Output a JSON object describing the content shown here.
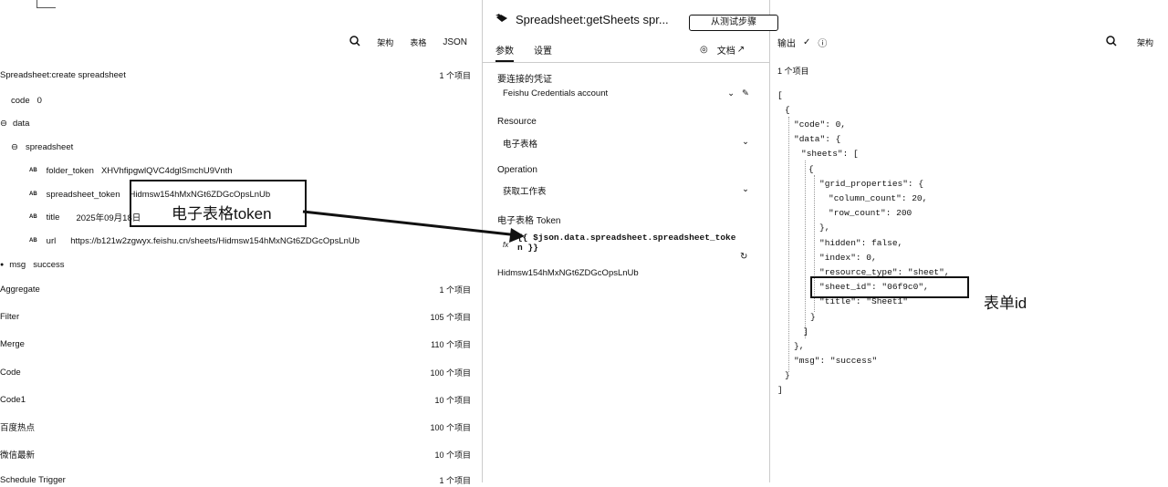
{
  "left": {
    "toolbar": {
      "schema": "架构",
      "table": "表格",
      "json": "JSON"
    },
    "node_title": "Spreadsheet:create spreadsheet",
    "node_count": "1 个项目",
    "fields": [
      {
        "key": "code",
        "value": "0"
      },
      {
        "key": "data",
        "value": ""
      },
      {
        "key": "spreadsheet",
        "value": ""
      },
      {
        "key": "folder_token",
        "value": "XHVhfipgwlQVC4dglSmchU9Vnth"
      },
      {
        "key": "spreadsheet_token",
        "value": "Hidmsw154hMxNGt6ZDGcOpsLnUb"
      },
      {
        "key": "title",
        "value": "2025年09月18日"
      },
      {
        "key": "url",
        "value": "https://b121w2zgwyx.feishu.cn/sheets/Hidmsw154hMxNGt6ZDGcOpsLnUb"
      },
      {
        "key": "msg",
        "value": "success"
      }
    ],
    "type_tag": "AB",
    "nodes": [
      {
        "name": "Aggregate",
        "count": "1 个项目"
      },
      {
        "name": "Filter",
        "count": "105 个项目"
      },
      {
        "name": "Merge",
        "count": "110 个项目"
      },
      {
        "name": "Code",
        "count": "100 个项目"
      },
      {
        "name": "Code1",
        "count": "10 个项目"
      },
      {
        "name": "百度热点",
        "count": "100 个项目"
      },
      {
        "name": "微信最新",
        "count": "10 个项目"
      },
      {
        "name": "Schedule Trigger",
        "count": "1 个项目"
      }
    ],
    "annotation": "电子表格token"
  },
  "mid": {
    "title": "Spreadsheet:getSheets spr...",
    "exec_label": "从测试步骤",
    "tabs": {
      "params": "参数",
      "settings": "设置",
      "docs": "文档"
    },
    "credential_label": "要连接的凭证",
    "credential_value": "Feishu Credentials account",
    "resource_label": "Resource",
    "resource_value": "电子表格",
    "operation_label": "Operation",
    "operation_value": "获取工作表",
    "token_label": "电子表格 Token",
    "token_expr_1": "{{ $json.data.spreadsheet.spreadsheet_toke",
    "token_expr_2": "n }}",
    "fx": "fx",
    "token_result": "Hidmsw154hMxNGt6ZDGcOpsLnUb"
  },
  "right": {
    "output_label": "输出",
    "schema": "架构",
    "count": "1 个项目",
    "json_lines": [
      "[",
      "{",
      "\"code\": 0,",
      "\"data\": {",
      "\"sheets\": [",
      "{",
      "\"grid_properties\": {",
      "\"column_count\": 20,",
      "\"row_count\": 200",
      "},",
      "\"hidden\": false,",
      "\"index\": 0,",
      "\"resource_type\": \"sheet\",",
      "\"sheet_id\": \"06f9c0\",",
      "\"title\": \"Sheet1\"",
      "}",
      "]",
      "},",
      "\"msg\": \"success\"",
      "}",
      "]"
    ],
    "annotation": "表单id"
  }
}
